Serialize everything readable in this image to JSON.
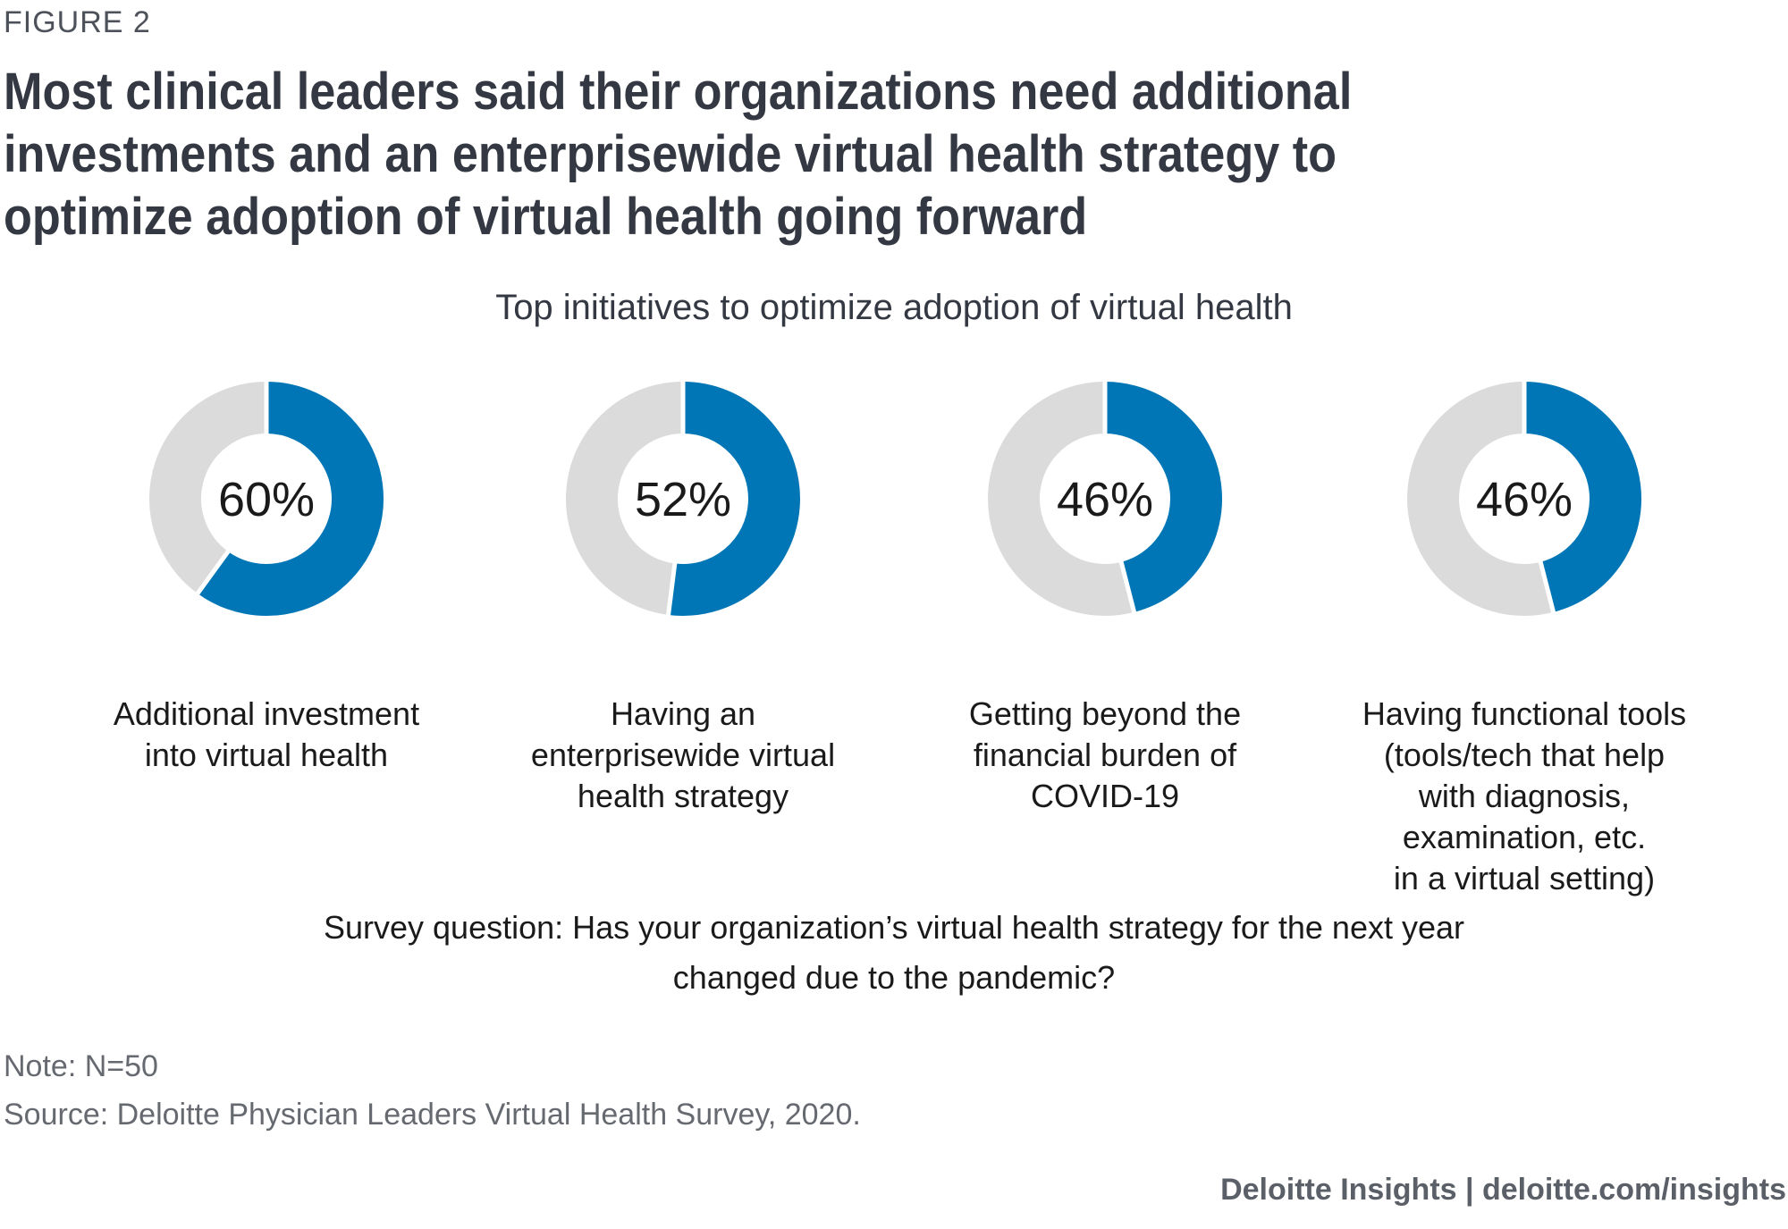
{
  "figure_label": "FIGURE 2",
  "headline": "Most clinical leaders said their organizations need additional investments and an enterprisewide virtual health strategy to optimize adoption of virtual health going forward",
  "colors": {
    "accent": "#0076b6",
    "remainder": "#dbdbdb",
    "text": "#333842"
  },
  "chart_data": {
    "type": "pie",
    "style": "donut",
    "title": "Top initiatives to optimize adoption of virtual health",
    "series": [
      {
        "name": "Additional investment into virtual health",
        "value": 60,
        "value_label": "60%",
        "label_lines": [
          "Additional investment",
          "into virtual health"
        ]
      },
      {
        "name": "Having an enterprisewide virtual health strategy",
        "value": 52,
        "value_label": "52%",
        "label_lines": [
          "Having an",
          "enterprisewide virtual",
          "health strategy"
        ]
      },
      {
        "name": "Getting beyond the financial burden of COVID-19",
        "value": 46,
        "value_label": "46%",
        "label_lines": [
          "Getting beyond the",
          "financial burden of",
          "COVID-19"
        ]
      },
      {
        "name": "Having functional tools (tools/tech that help with diagnosis, examination, etc. in a virtual setting)",
        "value": 46,
        "value_label": "46%",
        "label_lines": [
          "Having functional tools",
          "(tools/tech that help",
          "with diagnosis,",
          "examination, etc.",
          "in a virtual setting)"
        ]
      }
    ]
  },
  "survey_question": "Survey question: Has your organization’s virtual health strategy for the next year changed due to the pandemic?",
  "note": "Note: N=50",
  "source": "Source: Deloitte Physician Leaders Virtual Health Survey, 2020.",
  "credit": "Deloitte Insights | deloitte.com/insights"
}
